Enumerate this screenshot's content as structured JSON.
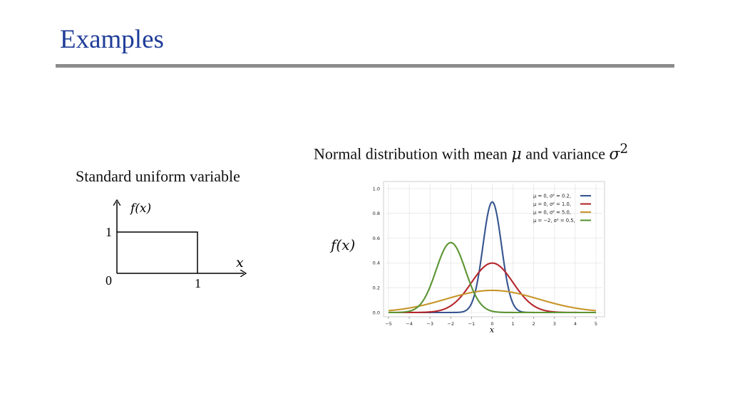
{
  "slide": {
    "title": "Examples"
  },
  "uniform": {
    "caption": "Standard uniform variable",
    "y_label": "f(x)",
    "x_label": "x",
    "tick_y_one": "1",
    "tick_origin": "0",
    "tick_x_one": "1"
  },
  "normal": {
    "caption_prefix": "Normal distribution with mean ",
    "mu_symbol": "μ",
    "caption_middle": " and variance ",
    "sigma_symbol": "σ",
    "sigma_exponent": "2",
    "y_label": "f(x)"
  },
  "chart_data": {
    "type": "line",
    "title": "",
    "xlabel": "x",
    "ylabel": "",
    "xlim": [
      -5,
      5
    ],
    "ylim": [
      0,
      1.0
    ],
    "x_ticks": [
      "−5",
      "−4",
      "−3",
      "−2",
      "−1",
      "0",
      "1",
      "2",
      "3",
      "4",
      "5"
    ],
    "y_ticks": [
      "0.0",
      "0.2",
      "0.4",
      "0.6",
      "0.8",
      "1.0"
    ],
    "grid": true,
    "legend_position": "top-right",
    "series": [
      {
        "name": "μ = 0,   σ² = 0.2,",
        "mu": 0,
        "variance": 0.2,
        "color": "#36558f"
      },
      {
        "name": "μ = 0,   σ² = 1.0,",
        "mu": 0,
        "variance": 1.0,
        "color": "#b5262b"
      },
      {
        "name": "μ = 0,   σ² = 5.0,",
        "mu": 0,
        "variance": 5.0,
        "color": "#c8952a"
      },
      {
        "name": "μ = −2,  σ² = 0.5,",
        "mu": -2,
        "variance": 0.5,
        "color": "#5b9433"
      }
    ]
  }
}
